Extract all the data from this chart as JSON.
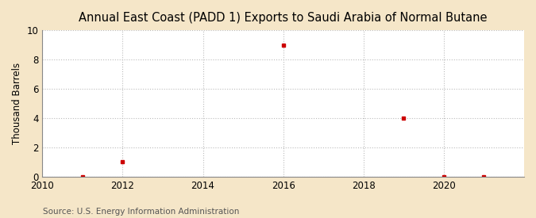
{
  "title": "Annual East Coast (PADD 1) Exports to Saudi Arabia of Normal Butane",
  "ylabel": "Thousand Barrels",
  "source": "Source: U.S. Energy Information Administration",
  "xlim": [
    2010,
    2022
  ],
  "ylim": [
    0,
    10
  ],
  "xticks": [
    2010,
    2012,
    2014,
    2016,
    2018,
    2020
  ],
  "yticks": [
    0,
    2,
    4,
    6,
    8,
    10
  ],
  "x_data": [
    2011,
    2012,
    2016,
    2019,
    2020,
    2021
  ],
  "y_data": [
    0.02,
    1.0,
    9.0,
    4.0,
    0.02,
    0.02
  ],
  "marker_color": "#cc0000",
  "marker": "s",
  "marker_size": 3.5,
  "fig_bg_color": "#f5e6c8",
  "plot_bg_color": "#ffffff",
  "grid_color": "#bbbbbb",
  "title_fontsize": 10.5,
  "label_fontsize": 8.5,
  "source_fontsize": 7.5,
  "tick_fontsize": 8.5
}
